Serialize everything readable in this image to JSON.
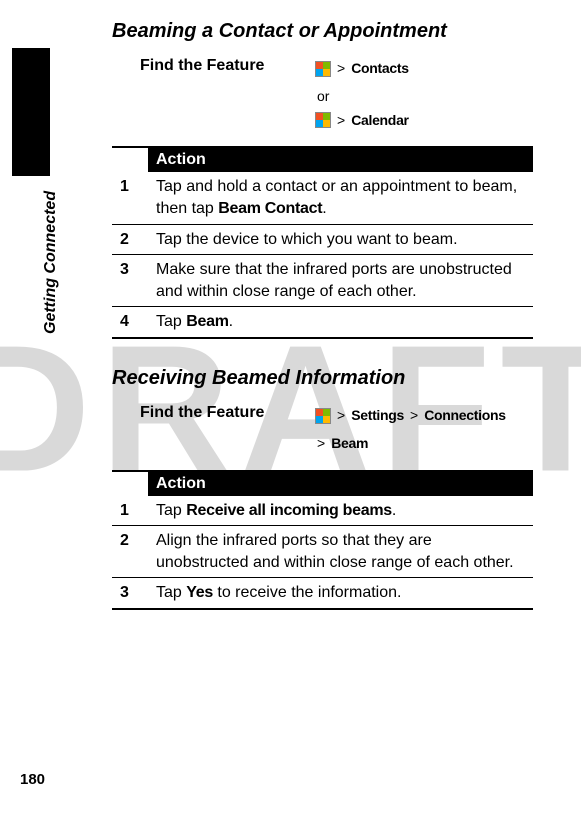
{
  "watermark": "DRAFT",
  "side_label": "Getting Connected",
  "page_number": "180",
  "section1": {
    "title": "Beaming a Contact or Appointment",
    "find_feature_label": "Find the Feature",
    "path1": "Contacts",
    "or": "or",
    "path2": "Calendar",
    "action_header": "Action",
    "steps": [
      {
        "n": "1",
        "text_pre": "Tap and hold a contact or an appointment to beam, then tap ",
        "bold": "Beam Contact",
        "text_post": "."
      },
      {
        "n": "2",
        "text_pre": "Tap the device to which you want to beam.",
        "bold": "",
        "text_post": ""
      },
      {
        "n": "3",
        "text_pre": "Make sure that the infrared ports are unobstructed and within close range of each other.",
        "bold": "",
        "text_post": ""
      },
      {
        "n": "4",
        "text_pre": "Tap ",
        "bold": "Beam",
        "text_post": "."
      }
    ]
  },
  "section2": {
    "title": "Receiving Beamed Information",
    "find_feature_label": "Find the Feature",
    "path_settings": "Settings",
    "path_connections": "Connections",
    "path_beam": "Beam",
    "action_header": "Action",
    "steps": [
      {
        "n": "1",
        "text_pre": "Tap ",
        "bold": "Receive all incoming beams",
        "text_post": "."
      },
      {
        "n": "2",
        "text_pre": "Align the infrared ports so that they are unobstructed and within close range of each other.",
        "bold": "",
        "text_post": ""
      },
      {
        "n": "3",
        "text_pre": "Tap ",
        "bold": "Yes",
        "text_post": " to receive the information."
      }
    ]
  },
  "gt": ">"
}
